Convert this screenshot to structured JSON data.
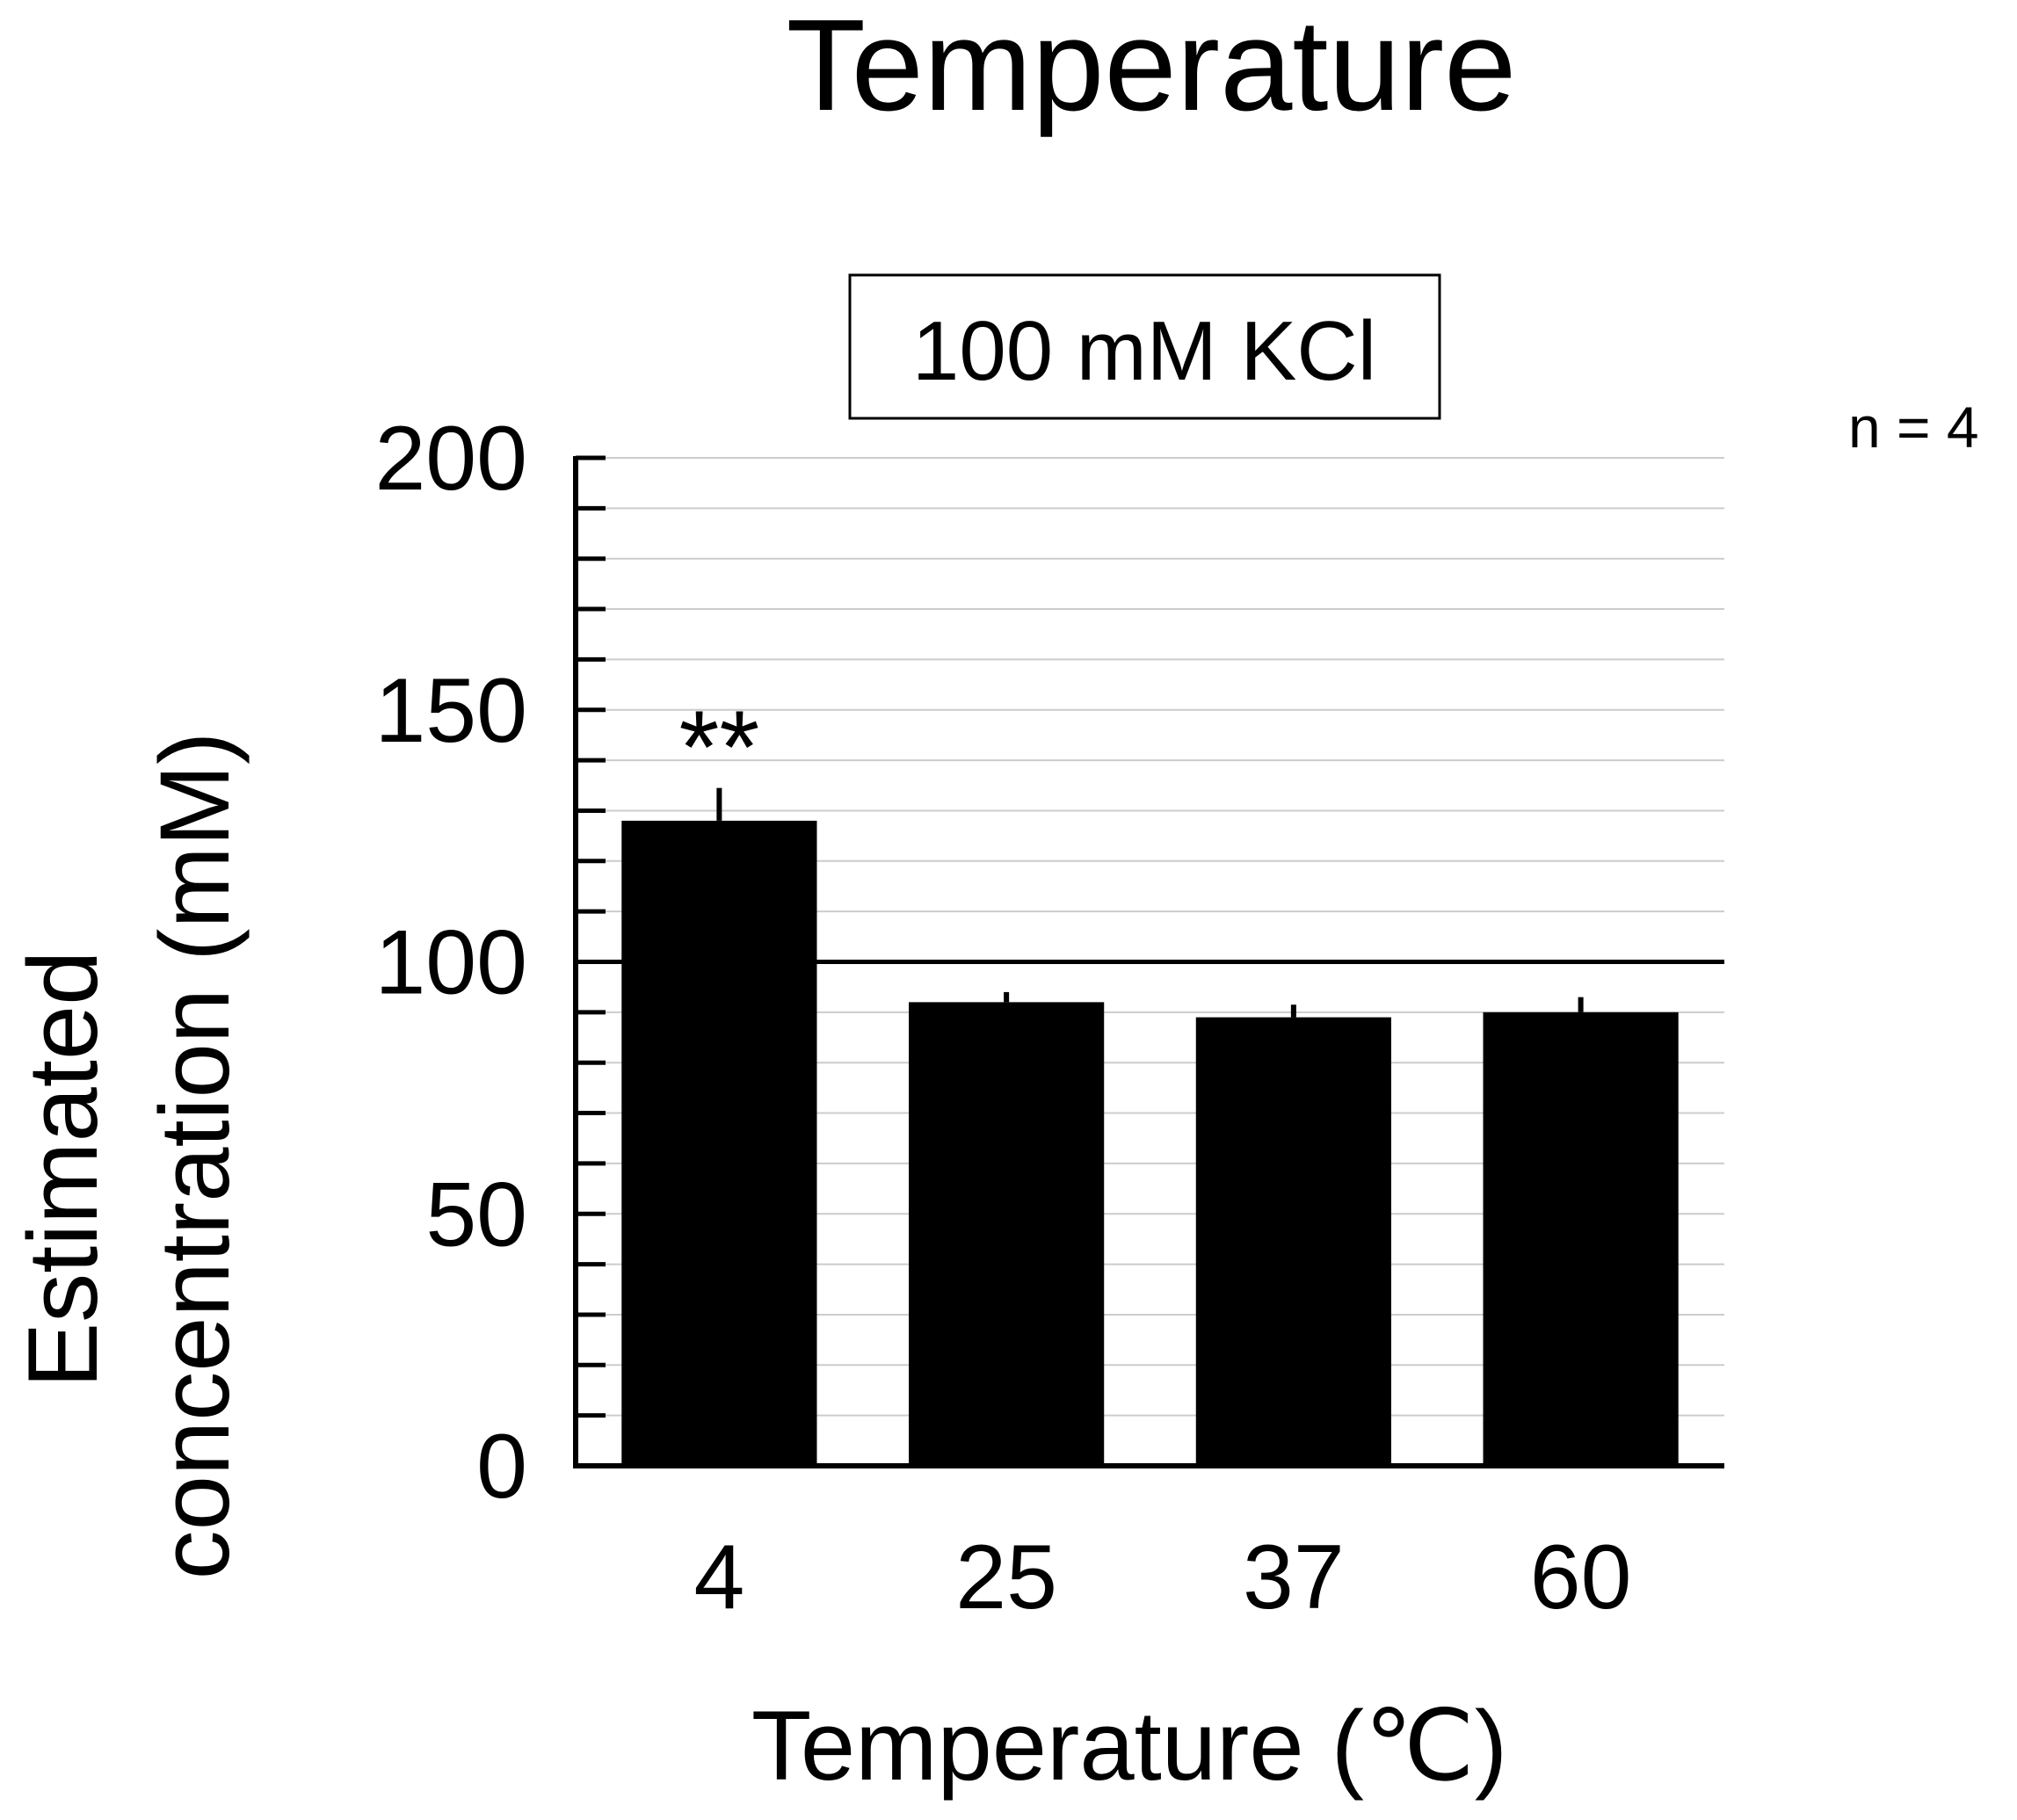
{
  "chart_data": {
    "type": "bar",
    "title": "Temperature",
    "subtitle": "100 mM KCl",
    "sample_note": "n = 4",
    "xlabel": "Temperature (℃)",
    "ylabel": "Estimated concentration (mM)",
    "ylabel_lines": [
      "Estimated",
      "concentration (mM)"
    ],
    "categories": [
      "4",
      "25",
      "37",
      "60"
    ],
    "values": [
      128,
      92,
      89,
      90
    ],
    "errors": [
      6.5,
      2,
      2.5,
      3
    ],
    "significance": [
      {
        "category": "4",
        "label": "**"
      }
    ],
    "reference_line": 100,
    "ylim": [
      0,
      200
    ],
    "yticks": [
      0,
      50,
      100,
      150,
      200
    ],
    "minor_tick_step": 10,
    "grid": true,
    "bar_color": "#000000",
    "grid_color": "#cccccc"
  }
}
